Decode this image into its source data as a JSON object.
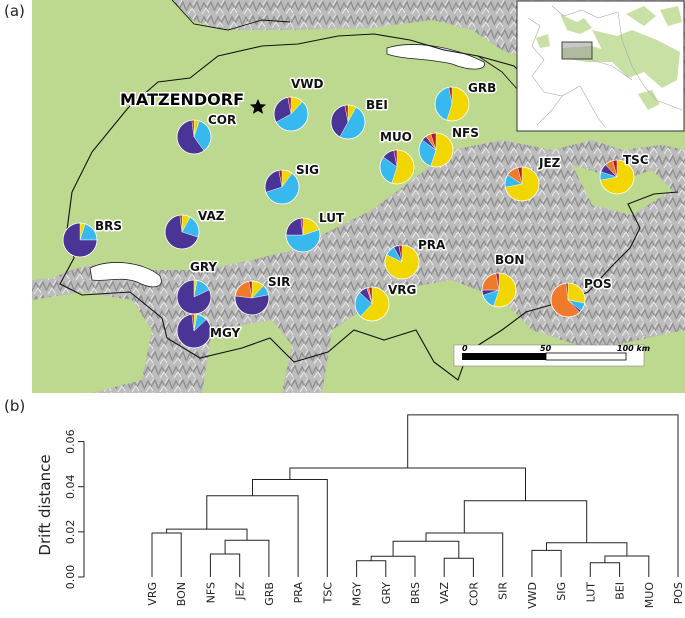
{
  "panels": {
    "a": "(a)",
    "b": "(b)"
  },
  "map": {
    "town": "MATZENDORF",
    "scale_labels": [
      "0",
      "50",
      "100 km"
    ],
    "haplotype_colors": [
      "#f2d600",
      "#37b8ef",
      "#4a3597",
      "#f07a2b",
      "#b21a2a"
    ],
    "sites": [
      {
        "code": "COR",
        "props": [
          0.05,
          0.35,
          0.58,
          0.0,
          0.02
        ]
      },
      {
        "code": "VWD",
        "props": [
          0.12,
          0.55,
          0.3,
          0.0,
          0.03
        ]
      },
      {
        "code": "BEI",
        "props": [
          0.08,
          0.5,
          0.39,
          0.0,
          0.03
        ]
      },
      {
        "code": "GRB",
        "props": [
          0.55,
          0.42,
          0.0,
          0.0,
          0.03
        ]
      },
      {
        "code": "MUO",
        "props": [
          0.55,
          0.3,
          0.12,
          0.0,
          0.03
        ]
      },
      {
        "code": "NFS",
        "props": [
          0.55,
          0.3,
          0.05,
          0.05,
          0.05
        ]
      },
      {
        "code": "SIG",
        "props": [
          0.1,
          0.6,
          0.27,
          0.0,
          0.03
        ]
      },
      {
        "code": "JEZ",
        "props": [
          0.72,
          0.12,
          0.0,
          0.12,
          0.04
        ]
      },
      {
        "code": "TSC",
        "props": [
          0.72,
          0.08,
          0.08,
          0.08,
          0.04
        ]
      },
      {
        "code": "BRS",
        "props": [
          0.05,
          0.2,
          0.75,
          0.0,
          0.0
        ]
      },
      {
        "code": "VAZ",
        "props": [
          0.08,
          0.22,
          0.68,
          0.0,
          0.02
        ]
      },
      {
        "code": "LUT",
        "props": [
          0.2,
          0.55,
          0.23,
          0.0,
          0.02
        ]
      },
      {
        "code": "PRA",
        "props": [
          0.82,
          0.1,
          0.05,
          0.0,
          0.03
        ]
      },
      {
        "code": "GRY",
        "props": [
          0.03,
          0.15,
          0.82,
          0.0,
          0.0
        ]
      },
      {
        "code": "SIR",
        "props": [
          0.12,
          0.1,
          0.55,
          0.2,
          0.03
        ]
      },
      {
        "code": "VRG",
        "props": [
          0.62,
          0.25,
          0.08,
          0.02,
          0.03
        ]
      },
      {
        "code": "BON",
        "props": [
          0.55,
          0.15,
          0.05,
          0.22,
          0.03
        ]
      },
      {
        "code": "POS",
        "props": [
          0.28,
          0.08,
          0.02,
          0.6,
          0.02
        ]
      },
      {
        "code": "MGY",
        "props": [
          0.03,
          0.1,
          0.85,
          0.0,
          0.02
        ]
      }
    ]
  },
  "chart_data": {
    "type": "dendrogram",
    "ylabel": "Drift distance",
    "ylim": [
      0,
      0.07
    ],
    "yticks": [
      0.0,
      0.02,
      0.04,
      0.06
    ],
    "ytick_labels": [
      "0.00",
      "0.02",
      "0.04",
      "0.06"
    ],
    "leaves": [
      "VRG",
      "BON",
      "NFS",
      "JEZ",
      "GRB",
      "PRA",
      "TSC",
      "MGY",
      "GRY",
      "BRS",
      "VAZ",
      "COR",
      "SIR",
      "VWD",
      "SIG",
      "LUT",
      "BEI",
      "MUO",
      "POS"
    ],
    "merges": [
      {
        "a": "VRG",
        "b": "BON",
        "h": 0.0195,
        "id": "m1"
      },
      {
        "a": "NFS",
        "b": "JEZ",
        "h": 0.0102,
        "id": "m2"
      },
      {
        "a": "m2",
        "b": "GRB",
        "h": 0.0163,
        "id": "m3"
      },
      {
        "a": "m1",
        "b": "m3",
        "h": 0.0212,
        "id": "m4"
      },
      {
        "a": "m4",
        "b": "PRA",
        "h": 0.036,
        "id": "m5"
      },
      {
        "a": "m5",
        "b": "TSC",
        "h": 0.0432,
        "id": "m6"
      },
      {
        "a": "MGY",
        "b": "GRY",
        "h": 0.0072,
        "id": "m7"
      },
      {
        "a": "m7",
        "b": "BRS",
        "h": 0.0092,
        "id": "m8"
      },
      {
        "a": "VAZ",
        "b": "COR",
        "h": 0.0083,
        "id": "m9"
      },
      {
        "a": "m8",
        "b": "m9",
        "h": 0.0158,
        "id": "m10"
      },
      {
        "a": "m10",
        "b": "SIR",
        "h": 0.0195,
        "id": "m11"
      },
      {
        "a": "LUT",
        "b": "BEI",
        "h": 0.0063,
        "id": "m12"
      },
      {
        "a": "m12",
        "b": "MUO",
        "h": 0.0093,
        "id": "m13"
      },
      {
        "a": "VWD",
        "b": "SIG",
        "h": 0.0118,
        "id": "m14"
      },
      {
        "a": "m14",
        "b": "m13",
        "h": 0.0152,
        "id": "m15"
      },
      {
        "a": "m11",
        "b": "m15",
        "h": 0.0338,
        "id": "m16"
      },
      {
        "a": "m6",
        "b": "m16",
        "h": 0.0483,
        "id": "m17"
      },
      {
        "a": "m17",
        "b": "POS",
        "h": 0.0718,
        "id": "m18"
      }
    ]
  }
}
